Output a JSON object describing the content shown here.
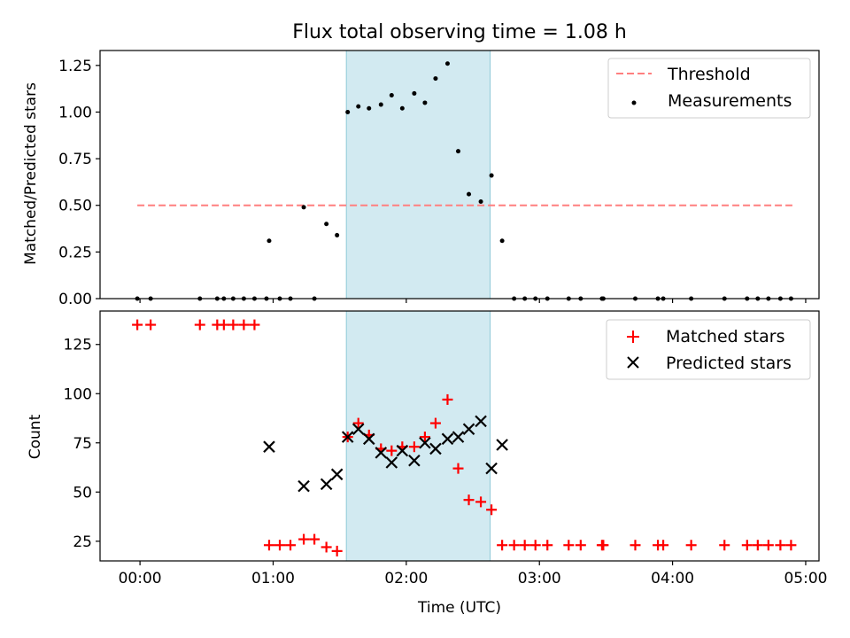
{
  "chart_data": [
    {
      "type": "scatter",
      "title": "Flux total observing time = 1.08 h",
      "xlabel": "",
      "ylabel": "Matched/Predicted stars",
      "xlim": [
        -0.3,
        5.1
      ],
      "ylim": [
        0.0,
        1.33
      ],
      "yticks": [
        0.0,
        0.25,
        0.5,
        0.75,
        1.0,
        1.25
      ],
      "ytick_labels": [
        "0.00",
        "0.25",
        "0.50",
        "0.75",
        "1.00",
        "1.25"
      ],
      "shaded_span": [
        1.55,
        2.63
      ],
      "shade_color": "#add8e6",
      "threshold": {
        "name": "Threshold",
        "y": 0.5,
        "x_range": [
          -0.02,
          4.9
        ],
        "color": "#ff7f7f"
      },
      "series": [
        {
          "name": "Measurements",
          "color": "#000000",
          "x": [
            -0.02,
            0.08,
            0.45,
            0.58,
            0.63,
            0.7,
            0.78,
            0.86,
            0.95,
            0.97,
            1.05,
            1.13,
            1.23,
            1.31,
            1.4,
            1.48,
            1.56,
            1.64,
            1.72,
            1.81,
            1.89,
            1.97,
            2.06,
            2.14,
            2.22,
            2.31,
            2.39,
            2.47,
            2.56,
            2.64,
            2.72,
            2.81,
            2.89,
            2.97,
            3.06,
            3.22,
            3.31,
            3.47,
            3.48,
            3.72,
            3.89,
            3.93,
            4.14,
            4.39,
            4.56,
            4.64,
            4.72,
            4.81,
            4.89
          ],
          "y": [
            0.0,
            0.0,
            0.0,
            0.0,
            0.0,
            0.0,
            0.0,
            0.0,
            0.0,
            0.31,
            0.0,
            0.0,
            0.49,
            0.0,
            0.4,
            0.34,
            1.0,
            1.03,
            1.02,
            1.04,
            1.09,
            1.02,
            1.1,
            1.05,
            1.18,
            1.26,
            0.79,
            0.56,
            0.52,
            0.66,
            0.31,
            0.0,
            0.0,
            0.0,
            0.0,
            0.0,
            0.0,
            0.0,
            0.0,
            0.0,
            0.0,
            0.0,
            0.0,
            0.0,
            0.0,
            0.0,
            0.0,
            0.0,
            0.0
          ]
        }
      ]
    },
    {
      "type": "scatter",
      "title": "",
      "xlabel": "Time (UTC)",
      "ylabel": "Count",
      "xlim": [
        -0.3,
        5.1
      ],
      "ylim": [
        15,
        142
      ],
      "yticks": [
        25,
        50,
        75,
        100,
        125
      ],
      "ytick_labels": [
        "25",
        "50",
        "75",
        "100",
        "125"
      ],
      "xticks": [
        0,
        1,
        2,
        3,
        4,
        5
      ],
      "xtick_labels": [
        "00:00",
        "01:00",
        "02:00",
        "03:00",
        "04:00",
        "05:00"
      ],
      "shaded_span": [
        1.55,
        2.63
      ],
      "shade_color": "#add8e6",
      "series": [
        {
          "name": "Matched stars",
          "marker": "+",
          "color": "#ff0000",
          "x": [
            -0.02,
            0.08,
            0.45,
            0.58,
            0.63,
            0.7,
            0.78,
            0.86,
            0.97,
            1.05,
            1.13,
            1.23,
            1.31,
            1.4,
            1.48,
            1.56,
            1.64,
            1.72,
            1.81,
            1.89,
            1.97,
            2.06,
            2.14,
            2.22,
            2.31,
            2.39,
            2.47,
            2.56,
            2.64,
            2.72,
            2.81,
            2.89,
            2.97,
            3.06,
            3.22,
            3.31,
            3.47,
            3.48,
            3.72,
            3.89,
            3.93,
            4.14,
            4.39,
            4.56,
            4.64,
            4.72,
            4.81,
            4.89
          ],
          "y": [
            135,
            135,
            135,
            135,
            135,
            135,
            135,
            135,
            23,
            23,
            23,
            26,
            26,
            22,
            20,
            78,
            85,
            79,
            72,
            71,
            73,
            73,
            78,
            85,
            97,
            62,
            46,
            45,
            41,
            23,
            23,
            23,
            23,
            23,
            23,
            23,
            23,
            23,
            23,
            23,
            23,
            23,
            23,
            23,
            23,
            23,
            23,
            23
          ]
        },
        {
          "name": "Predicted stars",
          "marker": "x",
          "color": "#000000",
          "x": [
            0.97,
            1.23,
            1.4,
            1.48,
            1.56,
            1.64,
            1.72,
            1.81,
            1.89,
            1.97,
            2.06,
            2.14,
            2.22,
            2.31,
            2.39,
            2.47,
            2.56,
            2.64,
            2.72
          ],
          "y": [
            73,
            53,
            54,
            59,
            78,
            82,
            77,
            70,
            65,
            71,
            66,
            75,
            72,
            77,
            78,
            82,
            86,
            62,
            74
          ]
        }
      ]
    }
  ]
}
